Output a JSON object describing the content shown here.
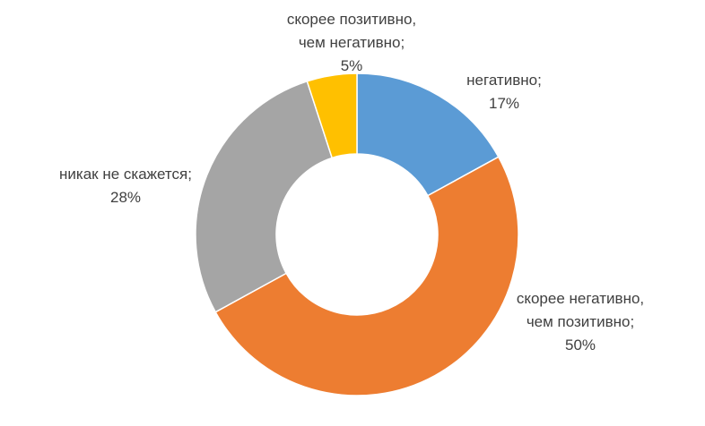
{
  "chart_data": {
    "type": "pie",
    "variant": "donut",
    "title": "",
    "legend": "none",
    "slices": [
      {
        "label": "негативно",
        "value": 17,
        "value_label": "17%",
        "color": "#5B9BD5"
      },
      {
        "label": "скорее негативно, чем позитивно",
        "value": 50,
        "value_label": "50%",
        "color": "#ED7D31"
      },
      {
        "label": "никак не скажется",
        "value": 28,
        "value_label": "28%",
        "color": "#A5A5A5"
      },
      {
        "label": "скорее позитивно, чем негативно",
        "value": 5,
        "value_label": "5%",
        "color": "#FFC000"
      }
    ],
    "data_labels": [
      {
        "lines": [
          "негативно;",
          "17%"
        ]
      },
      {
        "lines": [
          "скорее негативно,",
          "чем позитивно;",
          "50%"
        ]
      },
      {
        "lines": [
          "никак не скажется;",
          "28%"
        ]
      },
      {
        "lines": [
          "скорее позитивно,",
          "чем негативно;",
          "5%"
        ]
      }
    ]
  }
}
